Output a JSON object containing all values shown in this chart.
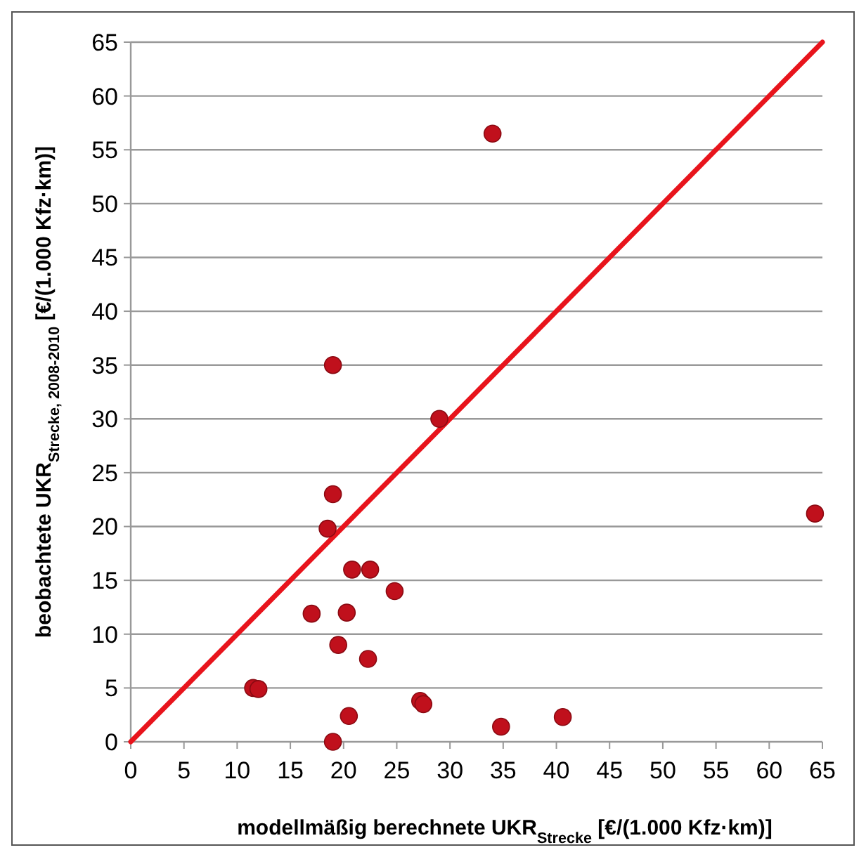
{
  "chart_data": {
    "type": "scatter",
    "xlabel": "modellmäßig berechnete UKR$_{Strecke}$   [€/(1.000 Kfz·km)]",
    "ylabel": "beobachtete UKR$_{Strecke, 2008-2010}$ [€/(1.000 Kfz·km)]",
    "xlim": [
      0,
      65
    ],
    "ylim": [
      0,
      65
    ],
    "xticks": [
      0,
      5,
      10,
      15,
      20,
      25,
      30,
      35,
      40,
      45,
      50,
      55,
      60,
      65
    ],
    "yticks": [
      0,
      5,
      10,
      15,
      20,
      25,
      30,
      35,
      40,
      45,
      50,
      55,
      60,
      65
    ],
    "grid": "y",
    "marker": "circle",
    "series": [
      {
        "color": "#c0101c",
        "x": [
          34,
          19,
          29,
          19,
          18.5,
          64.3,
          20.8,
          22.5,
          24.8,
          17,
          20.3,
          19.5,
          22.3,
          11.5,
          12,
          27.2,
          27.5,
          20.5,
          19,
          34.8,
          40.6
        ],
        "values": [
          56.5,
          35,
          30,
          23,
          19.8,
          21.2,
          16,
          16,
          14,
          11.9,
          12,
          9,
          7.7,
          5,
          4.9,
          3.8,
          3.5,
          2.4,
          0,
          1.4,
          2.3
        ]
      },
      {
        "type": "line",
        "color": "#e8141c",
        "marker": "none",
        "line_style": "solid",
        "x": [
          0,
          65
        ],
        "values": [
          0,
          65
        ]
      }
    ]
  }
}
